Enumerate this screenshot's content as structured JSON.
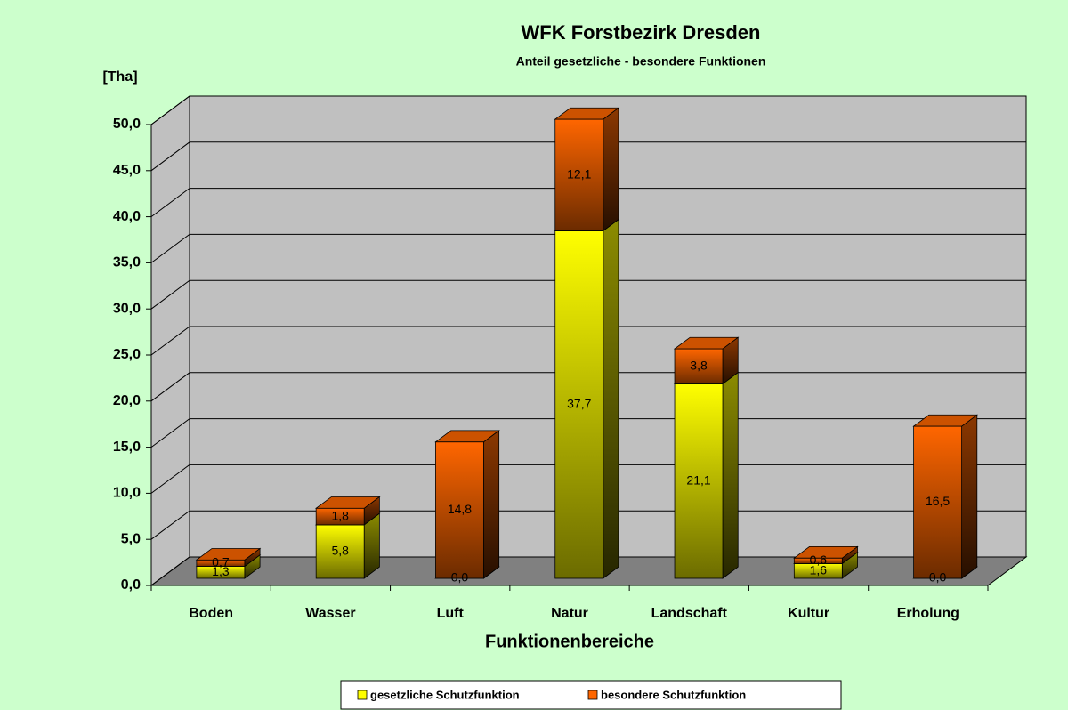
{
  "chart_data": {
    "type": "bar",
    "stacked": true,
    "title": "WFK Forstbezirk Dresden",
    "subtitle": "Anteil gesetzliche - besondere Funktionen",
    "y_label": "[Tha]",
    "x_label": "Funktionenbereiche",
    "categories": [
      "Boden",
      "Wasser",
      "Luft",
      "Natur",
      "Landschaft",
      "Kultur",
      "Erholung"
    ],
    "series": [
      {
        "name": "gesetzliche Schutzfunktion",
        "color": "#ffff00",
        "values": [
          1.3,
          5.8,
          0.0,
          37.7,
          21.1,
          1.6,
          0.0
        ],
        "value_labels": [
          "1,3",
          "5,8",
          "0,0",
          "37,7",
          "21,1",
          "1,6",
          "0,0"
        ]
      },
      {
        "name": "besondere Schutzfunktion",
        "color": "#ff6600",
        "values": [
          0.7,
          1.8,
          14.8,
          12.1,
          3.8,
          0.6,
          16.5
        ],
        "value_labels": [
          "0,7",
          "1,8",
          "14,8",
          "12,1",
          "3,8",
          "0,6",
          "16,5"
        ]
      }
    ],
    "ylim": [
      0,
      50
    ],
    "yticks": [
      {
        "value": 0,
        "label": "0,0"
      },
      {
        "value": 5,
        "label": "5,0"
      },
      {
        "value": 10,
        "label": "10,0"
      },
      {
        "value": 15,
        "label": "15,0"
      },
      {
        "value": 20,
        "label": "20,0"
      },
      {
        "value": 25,
        "label": "25,0"
      },
      {
        "value": 30,
        "label": "30,0"
      },
      {
        "value": 35,
        "label": "35,0"
      },
      {
        "value": 40,
        "label": "40,0"
      },
      {
        "value": 45,
        "label": "45,0"
      },
      {
        "value": 50,
        "label": "50,0"
      }
    ],
    "grid": true,
    "legend": "bottom"
  }
}
